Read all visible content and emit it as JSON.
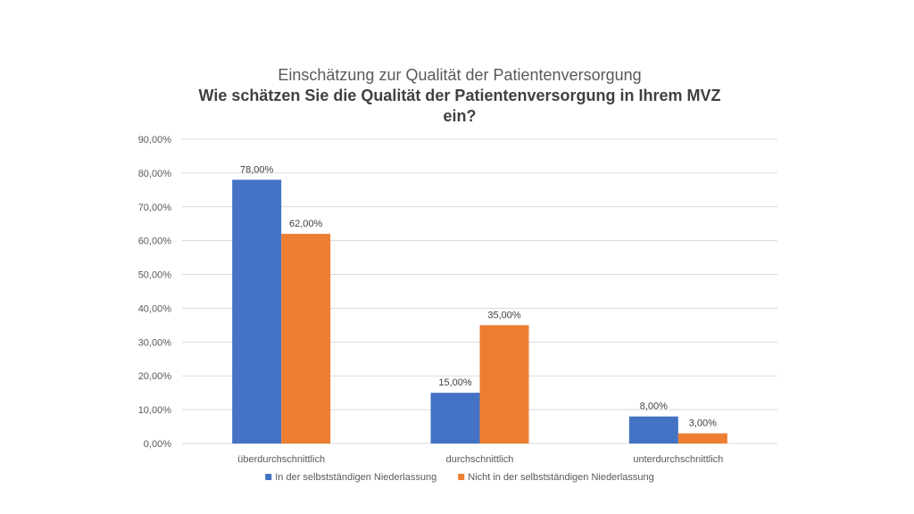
{
  "chart_data": {
    "type": "bar",
    "title": "Einschätzung zur Qualität der Patientenversorgung",
    "subtitle_lines": [
      "Wie schätzen Sie die Qualität der Patientenversorgung in Ihrem MVZ",
      "ein?"
    ],
    "categories": [
      "überdurchschnittlich",
      "durchschnittlich",
      "unterdurchschnittlich"
    ],
    "series": [
      {
        "name": "In der selbstständigen Niederlassung",
        "values": [
          78,
          15,
          8
        ],
        "labels": [
          "78,00%",
          "15,00%",
          "8,00%"
        ],
        "color": "#4472c4"
      },
      {
        "name": "Nicht in der selbstständigen Niederlassung",
        "values": [
          62,
          35,
          3
        ],
        "labels": [
          "62,00%",
          "35,00%",
          "3,00%"
        ],
        "color": "#ed7d31"
      }
    ],
    "ylim": [
      0,
      90
    ],
    "yticks": [
      "0,00%",
      "10,00%",
      "20,00%",
      "30,00%",
      "40,00%",
      "50,00%",
      "60,00%",
      "70,00%",
      "80,00%",
      "90,00%"
    ],
    "grid": true,
    "legend": "bottom"
  }
}
